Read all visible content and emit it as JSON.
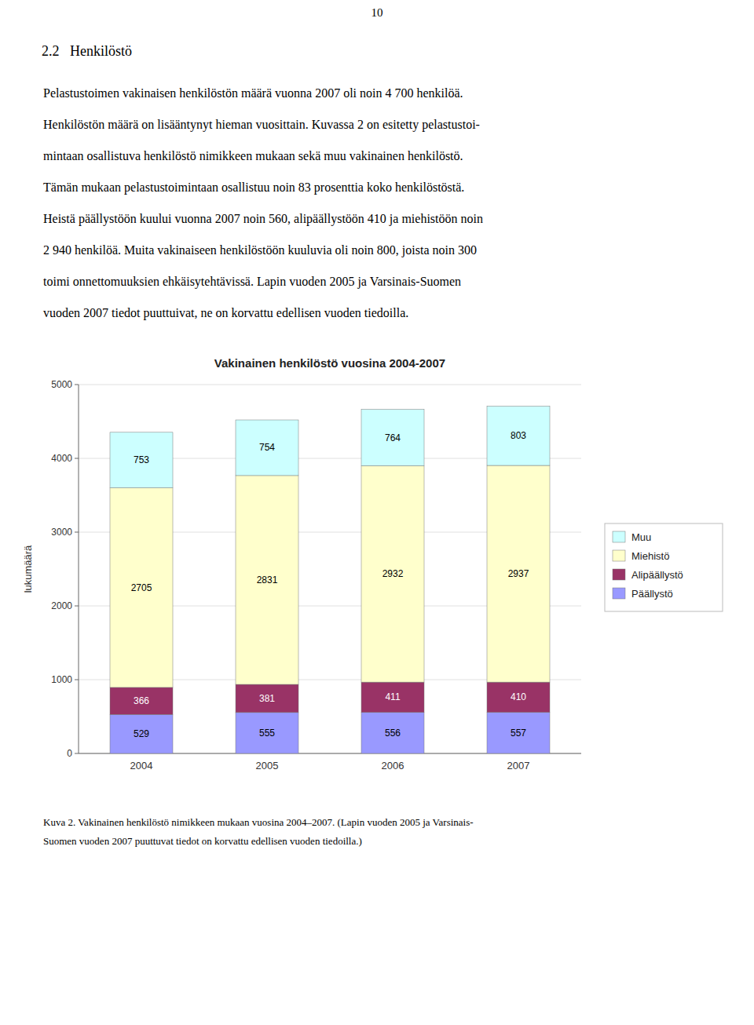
{
  "page_number": "10",
  "heading": "2.2   Henkilöstö",
  "text_lines": [
    "Pelastustoimen vakinaisen henkilöstön määrä vuonna 2007 oli noin 4 700 henkilöä.",
    "Henkilöstön määrä on lisääntynyt hieman vuosittain. Kuvassa 2 on esitetty pelastustoi-",
    "mintaan osallistuva henkilöstö nimikkeen mukaan sekä muu vakinainen henkilöstö.",
    "Tämän mukaan pelastustoimintaan osallistuu noin 83 prosenttia koko henkilöstöstä.",
    "Heistä päällystöön kuului vuonna 2007 noin 560, alipäällystöön 410 ja miehistöön noin",
    "2 940 henkilöä. Muita vakinaiseen henkilöstöön kuuluvia oli noin 800, joista noin 300",
    "toimi onnettomuuksien ehkäisytehtävissä. Lapin vuoden 2005 ja Varsinais-Suomen",
    "vuoden 2007 tiedot puuttuivat, ne on korvattu edellisen vuoden tiedoilla."
  ],
  "caption_lines": [
    "Kuva 2. Vakinainen henkilöstö nimikkeen mukaan vuosina 2004–2007. (Lapin vuoden 2005 ja Varsinais-",
    "Suomen vuoden 2007 puuttuvat tiedot on korvattu edellisen vuoden tiedoilla.)"
  ],
  "chart_data": {
    "type": "bar",
    "stacked": true,
    "title": "Vakinainen henkilöstö vuosina 2004-2007",
    "ylabel": "lukumäärä",
    "categories": [
      "2004",
      "2005",
      "2006",
      "2007"
    ],
    "series": [
      {
        "name": "Päällystö",
        "color": "#9999FF",
        "values": [
          529,
          555,
          556,
          557
        ]
      },
      {
        "name": "Alipäällystö",
        "color": "#993366",
        "values": [
          366,
          381,
          411,
          410
        ]
      },
      {
        "name": "Miehistö",
        "color": "#FFFFCC",
        "values": [
          2705,
          2831,
          2932,
          2937
        ]
      },
      {
        "name": "Muu",
        "color": "#CCFFFF",
        "values": [
          753,
          754,
          764,
          803
        ]
      }
    ],
    "ylim": [
      0,
      5000
    ],
    "yticks": [
      0,
      1000,
      2000,
      3000,
      4000,
      5000
    ],
    "grid": true,
    "legend": "right",
    "data_labels": true
  }
}
